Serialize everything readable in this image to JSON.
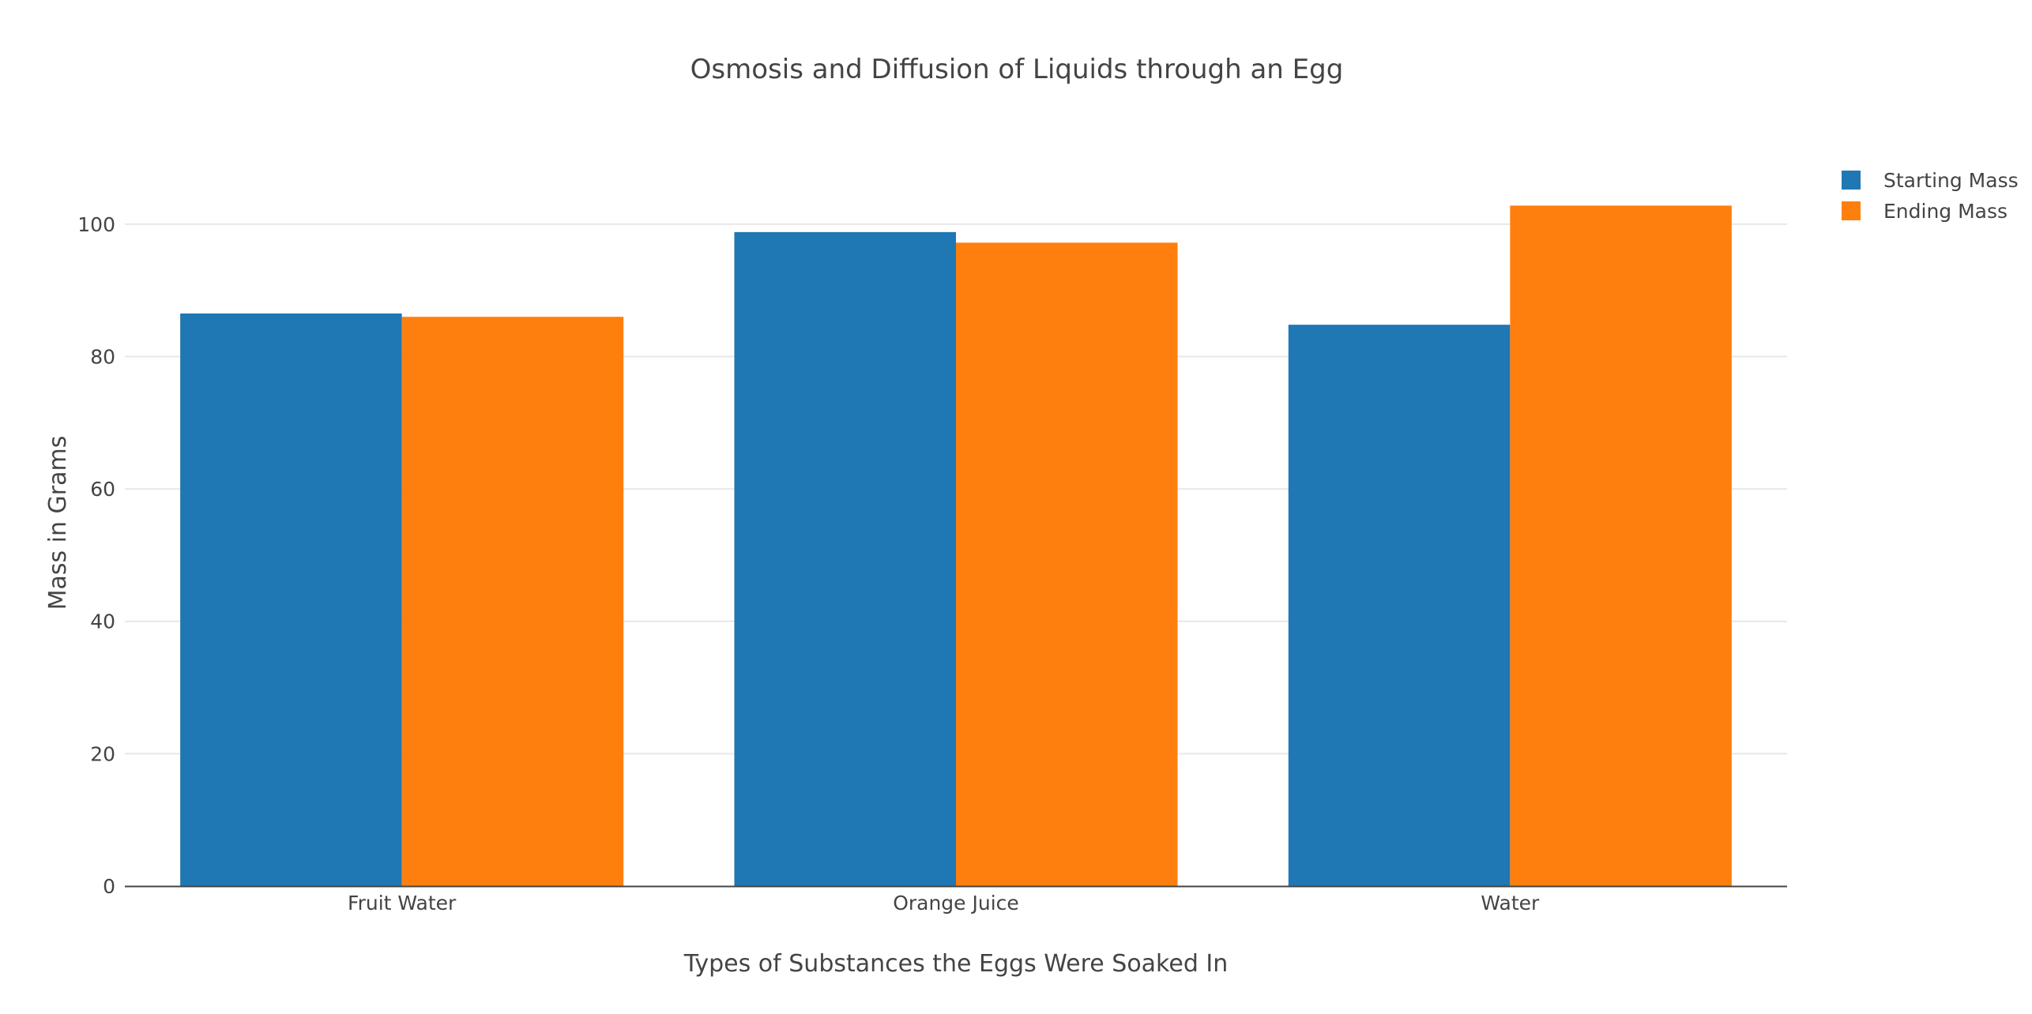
{
  "chart_data": {
    "type": "bar",
    "title": "Osmosis and Diffusion of Liquids through an Egg",
    "xlabel": "Types of Substances the Eggs Were Soaked In",
    "ylabel": "Mass in Grams",
    "categories": [
      "Fruit Water",
      "Orange Juice",
      "Water"
    ],
    "series": [
      {
        "name": "Starting Mass",
        "color": "#1f77b4",
        "values": [
          86.5,
          98.8,
          84.8
        ]
      },
      {
        "name": "Ending Mass",
        "color": "#ff7f0e",
        "values": [
          86.0,
          97.2,
          102.8
        ]
      }
    ],
    "ylim": [
      0,
      110
    ],
    "yticks": [
      0,
      20,
      40,
      60,
      80,
      100
    ],
    "grid": true,
    "legend": "top-right"
  }
}
